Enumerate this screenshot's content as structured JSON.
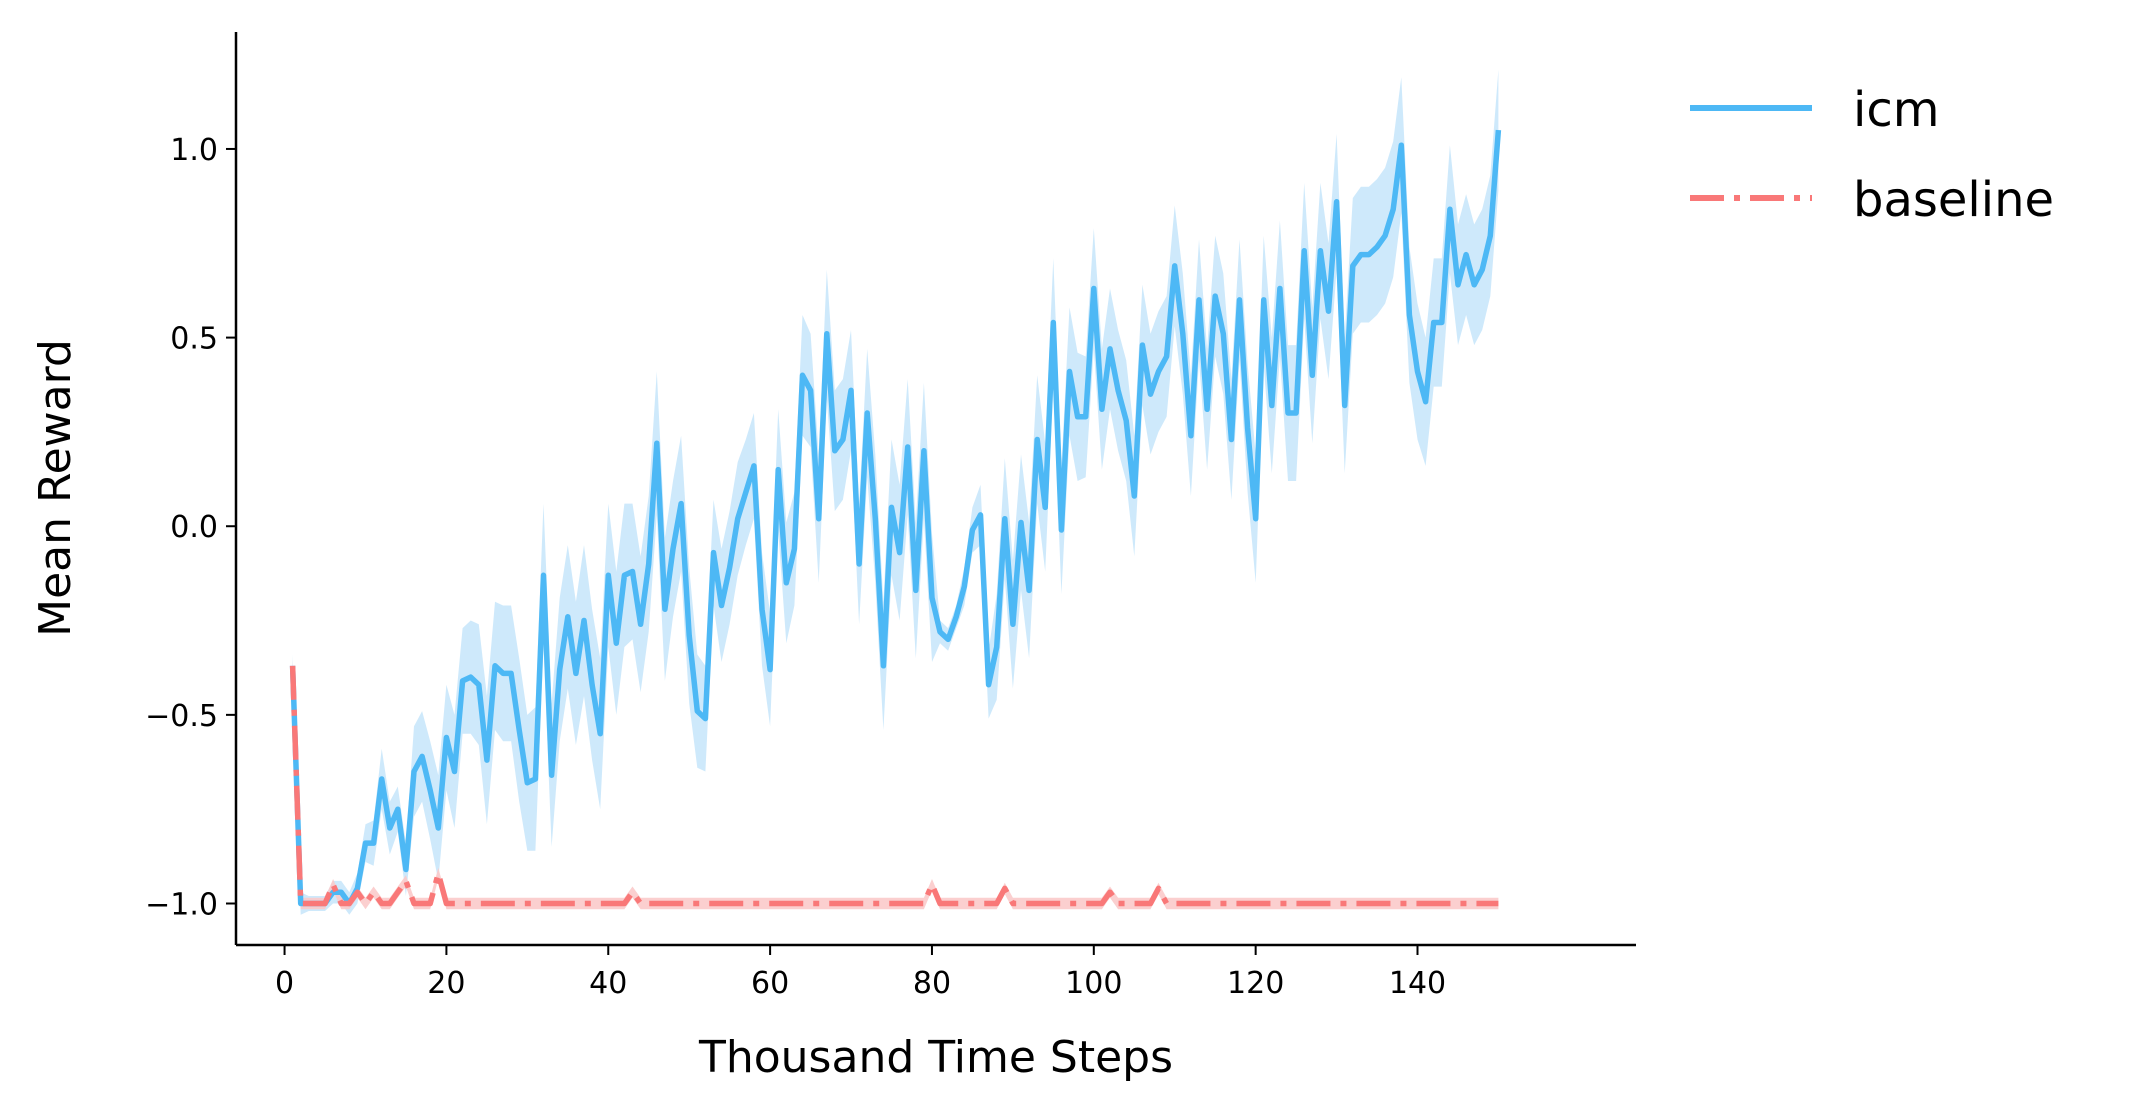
{
  "chart_data": {
    "type": "line",
    "xlabel": "Thousand Time Steps",
    "ylabel": "Mean Reward",
    "xlim": [
      -6,
      167
    ],
    "ylim": [
      -1.11,
      1.31
    ],
    "xticks": [
      0,
      20,
      40,
      60,
      80,
      100,
      120,
      140
    ],
    "yticks": [
      -1.0,
      -0.5,
      0.0,
      0.5,
      1.0
    ],
    "ytick_labels": [
      "−1.0",
      "−0.5",
      "0.0",
      "0.5",
      "1.0"
    ],
    "grid": false,
    "legend_position": "top-right, outside plot",
    "series": [
      {
        "name": "icm",
        "color": "#4db8f5",
        "band_color": "#cbe8fb",
        "line_style": "solid",
        "points": [
          [
            1,
            -0.37
          ],
          [
            2,
            -1.0
          ],
          [
            3,
            -1.0
          ],
          [
            4,
            -1.0
          ],
          [
            5,
            -1.0
          ],
          [
            6,
            -0.97
          ],
          [
            7,
            -0.97
          ],
          [
            8,
            -1.0
          ],
          [
            9,
            -0.96
          ],
          [
            10,
            -0.84
          ],
          [
            11,
            -0.84
          ],
          [
            12,
            -0.67
          ],
          [
            13,
            -0.8
          ],
          [
            14,
            -0.75
          ],
          [
            15,
            -0.91
          ],
          [
            16,
            -0.65
          ],
          [
            17,
            -0.61
          ],
          [
            18,
            -0.7
          ],
          [
            19,
            -0.8
          ],
          [
            20,
            -0.56
          ],
          [
            21,
            -0.65
          ],
          [
            22,
            -0.41
          ],
          [
            23,
            -0.4
          ],
          [
            24,
            -0.42
          ],
          [
            25,
            -0.62
          ],
          [
            26,
            -0.37
          ],
          [
            27,
            -0.39
          ],
          [
            28,
            -0.39
          ],
          [
            29,
            -0.54
          ],
          [
            30,
            -0.68
          ],
          [
            31,
            -0.67
          ],
          [
            32,
            -0.13
          ],
          [
            33,
            -0.66
          ],
          [
            34,
            -0.38
          ],
          [
            35,
            -0.24
          ],
          [
            36,
            -0.39
          ],
          [
            37,
            -0.25
          ],
          [
            38,
            -0.42
          ],
          [
            39,
            -0.55
          ],
          [
            40,
            -0.13
          ],
          [
            41,
            -0.31
          ],
          [
            42,
            -0.13
          ],
          [
            43,
            -0.12
          ],
          [
            44,
            -0.26
          ],
          [
            45,
            -0.1
          ],
          [
            46,
            0.22
          ],
          [
            47,
            -0.22
          ],
          [
            48,
            -0.06
          ],
          [
            49,
            0.06
          ],
          [
            50,
            -0.29
          ],
          [
            51,
            -0.49
          ],
          [
            52,
            -0.51
          ],
          [
            53,
            -0.07
          ],
          [
            54,
            -0.21
          ],
          [
            55,
            -0.11
          ],
          [
            56,
            0.02
          ],
          [
            57,
            0.09
          ],
          [
            58,
            0.16
          ],
          [
            59,
            -0.22
          ],
          [
            60,
            -0.38
          ],
          [
            61,
            0.15
          ],
          [
            62,
            -0.15
          ],
          [
            63,
            -0.06
          ],
          [
            64,
            0.4
          ],
          [
            65,
            0.36
          ],
          [
            66,
            0.02
          ],
          [
            67,
            0.51
          ],
          [
            68,
            0.2
          ],
          [
            69,
            0.23
          ],
          [
            70,
            0.36
          ],
          [
            71,
            -0.1
          ],
          [
            72,
            0.3
          ],
          [
            73,
            0.02
          ],
          [
            74,
            -0.37
          ],
          [
            75,
            0.05
          ],
          [
            76,
            -0.07
          ],
          [
            77,
            0.21
          ],
          [
            78,
            -0.17
          ],
          [
            79,
            0.2
          ],
          [
            80,
            -0.19
          ],
          [
            81,
            -0.28
          ],
          [
            82,
            -0.3
          ],
          [
            83,
            -0.24
          ],
          [
            84,
            -0.16
          ],
          [
            85,
            -0.01
          ],
          [
            86,
            0.03
          ],
          [
            87,
            -0.42
          ],
          [
            88,
            -0.32
          ],
          [
            89,
            0.02
          ],
          [
            90,
            -0.26
          ],
          [
            91,
            0.01
          ],
          [
            92,
            -0.17
          ],
          [
            93,
            0.23
          ],
          [
            94,
            0.05
          ],
          [
            95,
            0.54
          ],
          [
            96,
            -0.01
          ],
          [
            97,
            0.41
          ],
          [
            98,
            0.29
          ],
          [
            99,
            0.29
          ],
          [
            100,
            0.63
          ],
          [
            101,
            0.31
          ],
          [
            102,
            0.47
          ],
          [
            103,
            0.36
          ],
          [
            104,
            0.28
          ],
          [
            105,
            0.08
          ],
          [
            106,
            0.48
          ],
          [
            107,
            0.35
          ],
          [
            108,
            0.41
          ],
          [
            109,
            0.45
          ],
          [
            110,
            0.69
          ],
          [
            111,
            0.51
          ],
          [
            112,
            0.24
          ],
          [
            113,
            0.6
          ],
          [
            114,
            0.31
          ],
          [
            115,
            0.61
          ],
          [
            116,
            0.51
          ],
          [
            117,
            0.23
          ],
          [
            118,
            0.6
          ],
          [
            119,
            0.26
          ],
          [
            120,
            0.02
          ],
          [
            121,
            0.6
          ],
          [
            122,
            0.32
          ],
          [
            123,
            0.63
          ],
          [
            124,
            0.3
          ],
          [
            125,
            0.3
          ],
          [
            126,
            0.73
          ],
          [
            127,
            0.4
          ],
          [
            128,
            0.73
          ],
          [
            129,
            0.57
          ],
          [
            130,
            0.86
          ],
          [
            131,
            0.32
          ],
          [
            132,
            0.69
          ],
          [
            133,
            0.72
          ],
          [
            134,
            0.72
          ],
          [
            135,
            0.74
          ],
          [
            136,
            0.77
          ],
          [
            137,
            0.84
          ],
          [
            138,
            1.01
          ],
          [
            139,
            0.56
          ],
          [
            140,
            0.41
          ],
          [
            141,
            0.33
          ],
          [
            142,
            0.54
          ],
          [
            143,
            0.54
          ],
          [
            144,
            0.84
          ],
          [
            145,
            0.64
          ],
          [
            146,
            0.72
          ],
          [
            147,
            0.64
          ],
          [
            148,
            0.68
          ],
          [
            149,
            0.77
          ],
          [
            150,
            1.05
          ]
        ],
        "band_halfwidth": [
          0.03,
          0.03,
          0.02,
          0.02,
          0.02,
          0.03,
          0.03,
          0.03,
          0.04,
          0.05,
          0.06,
          0.08,
          0.07,
          0.06,
          0.07,
          0.12,
          0.12,
          0.13,
          0.14,
          0.14,
          0.15,
          0.14,
          0.15,
          0.16,
          0.17,
          0.17,
          0.18,
          0.18,
          0.19,
          0.18,
          0.19,
          0.19,
          0.19,
          0.19,
          0.19,
          0.19,
          0.2,
          0.2,
          0.2,
          0.19,
          0.19,
          0.19,
          0.18,
          0.18,
          0.18,
          0.19,
          0.19,
          0.18,
          0.18,
          0.18,
          0.15,
          0.14,
          0.14,
          0.15,
          0.15,
          0.15,
          0.14,
          0.14,
          0.15,
          0.15,
          0.16,
          0.16,
          0.15,
          0.16,
          0.15,
          0.17,
          0.17,
          0.16,
          0.16,
          0.16,
          0.16,
          0.17,
          0.17,
          0.17,
          0.18,
          0.18,
          0.18,
          0.18,
          0.18,
          0.17,
          0.03,
          0.03,
          0.03,
          0.05,
          0.06,
          0.08,
          0.09,
          0.14,
          0.16,
          0.17,
          0.18,
          0.18,
          0.17,
          0.17,
          0.17,
          0.17,
          0.17,
          0.17,
          0.16,
          0.16,
          0.16,
          0.16,
          0.16,
          0.16,
          0.16,
          0.16,
          0.16,
          0.16,
          0.16,
          0.16,
          0.16,
          0.16,
          0.16,
          0.16,
          0.16,
          0.16,
          0.16,
          0.16,
          0.17,
          0.17,
          0.17,
          0.18,
          0.18,
          0.18,
          0.18,
          0.18,
          0.18,
          0.18,
          0.18,
          0.18,
          0.18,
          0.18,
          0.18,
          0.18,
          0.18,
          0.18,
          0.18,
          0.18,
          0.18,
          0.18,
          0.17,
          0.17,
          0.17,
          0.17,
          0.16,
          0.16,
          0.16,
          0.16,
          0.16,
          0.16
        ]
      },
      {
        "name": "baseline",
        "color": "#f97878",
        "band_color": "#fbcaca",
        "line_style": "dashdot",
        "points": [
          [
            1,
            -0.37
          ],
          [
            2,
            -1.0
          ],
          [
            3,
            -1.0
          ],
          [
            4,
            -1.0
          ],
          [
            5,
            -1.0
          ],
          [
            6,
            -0.95
          ],
          [
            7,
            -1.0
          ],
          [
            8,
            -1.0
          ],
          [
            9,
            -0.97
          ],
          [
            10,
            -1.0
          ],
          [
            11,
            -0.97
          ],
          [
            12,
            -1.0
          ],
          [
            13,
            -1.0
          ],
          [
            14,
            -0.97
          ],
          [
            15,
            -0.94
          ],
          [
            16,
            -1.0
          ],
          [
            17,
            -1.0
          ],
          [
            18,
            -1.0
          ],
          [
            19,
            -0.92
          ],
          [
            20,
            -1.0
          ],
          [
            25,
            -1.0
          ],
          [
            30,
            -1.0
          ],
          [
            35,
            -1.0
          ],
          [
            40,
            -1.0
          ],
          [
            42,
            -1.0
          ],
          [
            43,
            -0.97
          ],
          [
            44,
            -1.0
          ],
          [
            50,
            -1.0
          ],
          [
            60,
            -1.0
          ],
          [
            70,
            -1.0
          ],
          [
            79,
            -1.0
          ],
          [
            80,
            -0.95
          ],
          [
            81,
            -1.0
          ],
          [
            85,
            -1.0
          ],
          [
            88,
            -1.0
          ],
          [
            89,
            -0.96
          ],
          [
            90,
            -1.0
          ],
          [
            95,
            -1.0
          ],
          [
            101,
            -1.0
          ],
          [
            102,
            -0.97
          ],
          [
            103,
            -1.0
          ],
          [
            107,
            -1.0
          ],
          [
            108,
            -0.96
          ],
          [
            109,
            -1.0
          ],
          [
            115,
            -1.0
          ],
          [
            120,
            -1.0
          ],
          [
            130,
            -1.0
          ],
          [
            140,
            -1.0
          ],
          [
            150,
            -1.0
          ]
        ],
        "band_halfwidth": 0.015
      }
    ]
  }
}
